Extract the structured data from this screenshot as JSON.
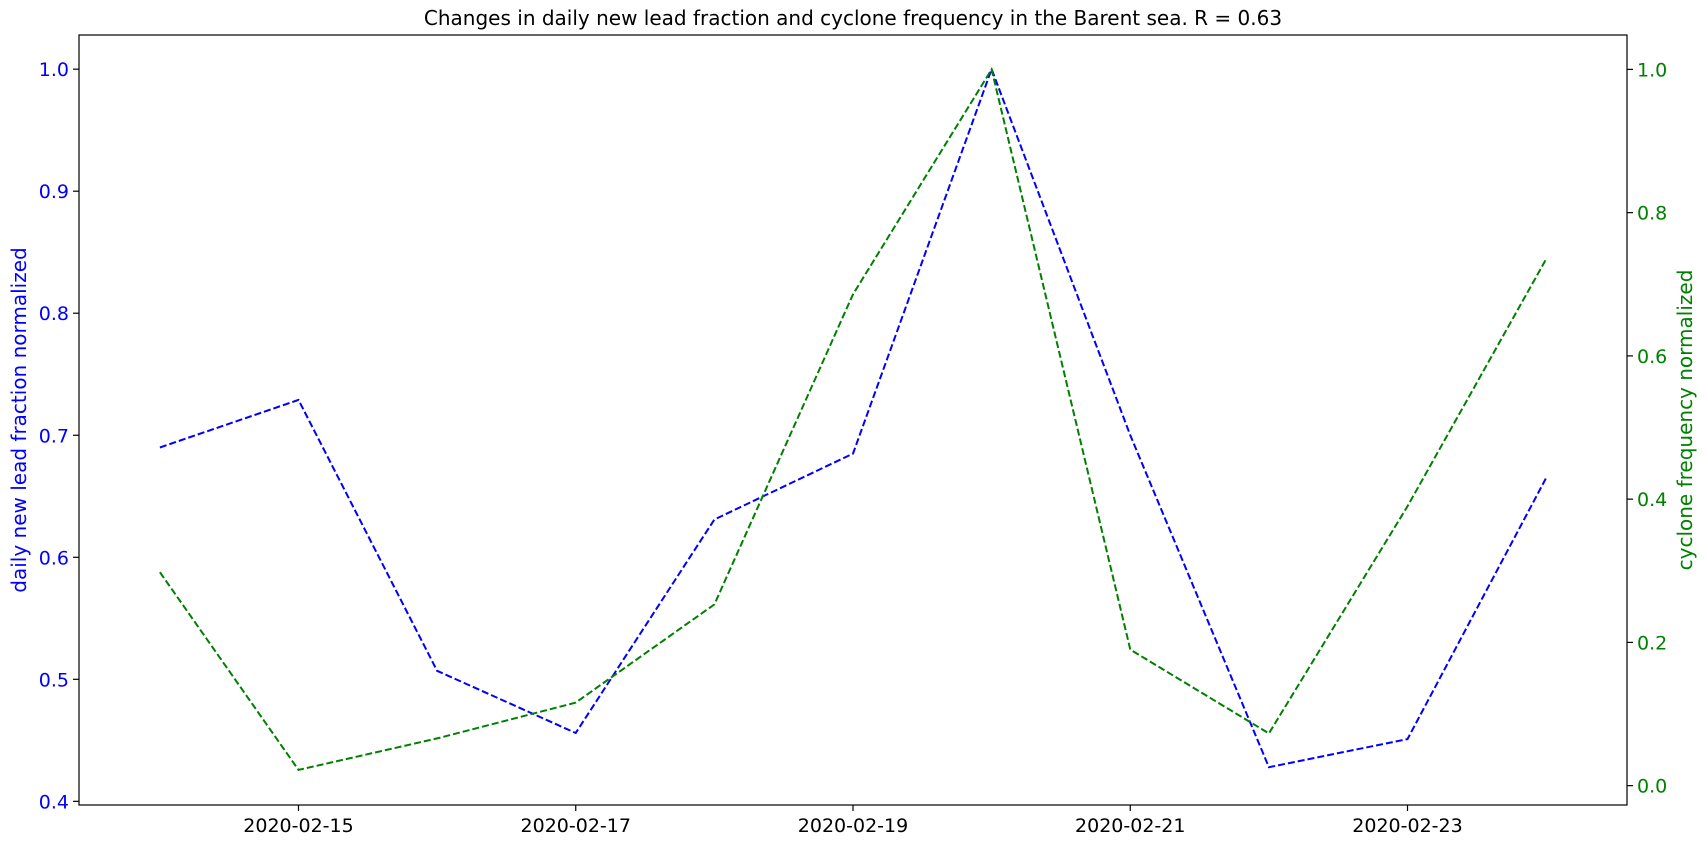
{
  "chart_data": {
    "type": "line",
    "title": "Changes in daily new lead fraction and cyclone frequency in the Barent sea. R = 0.63",
    "x": [
      "2020-02-14",
      "2020-02-15",
      "2020-02-16",
      "2020-02-17",
      "2020-02-18",
      "2020-02-19",
      "2020-02-20",
      "2020-02-21",
      "2020-02-22",
      "2020-02-23",
      "2020-02-24"
    ],
    "x_tick_labels": [
      "2020-02-15",
      "2020-02-17",
      "2020-02-19",
      "2020-02-21",
      "2020-02-23"
    ],
    "xlim": [
      "2020-02-13T10:00",
      "2020-02-24T14:00"
    ],
    "grid": false,
    "series": [
      {
        "name": "",
        "axis": "left",
        "color": "#0000ff",
        "line_style": "dashed",
        "values": [
          0.69,
          0.729,
          0.507,
          0.456,
          0.631,
          0.685,
          1.0,
          0.7,
          0.428,
          0.451,
          0.665
        ]
      },
      {
        "name": "",
        "axis": "right",
        "color": "#008000",
        "line_style": "dashed",
        "values": [
          0.298,
          0.022,
          0.066,
          0.116,
          0.253,
          0.686,
          1.0,
          0.19,
          0.073,
          0.39,
          0.735
        ]
      }
    ],
    "y_left": {
      "label": "daily new lead fraction normalized",
      "color": "#0000ff",
      "ylim": [
        0.397,
        1.028
      ],
      "ticks": [
        0.4,
        0.5,
        0.6,
        0.7,
        0.8,
        0.9,
        1.0
      ],
      "tick_labels": [
        "0.4",
        "0.5",
        "0.6",
        "0.7",
        "0.8",
        "0.9",
        "1.0"
      ]
    },
    "y_right": {
      "label": "cyclone frequency normalized",
      "color": "#008000",
      "ylim": [
        -0.027,
        1.048
      ],
      "ticks": [
        0.0,
        0.2,
        0.4,
        0.6,
        0.8,
        1.0
      ],
      "tick_labels": [
        "0.0",
        "0.2",
        "0.4",
        "0.6",
        "0.8",
        "1.0"
      ]
    }
  }
}
